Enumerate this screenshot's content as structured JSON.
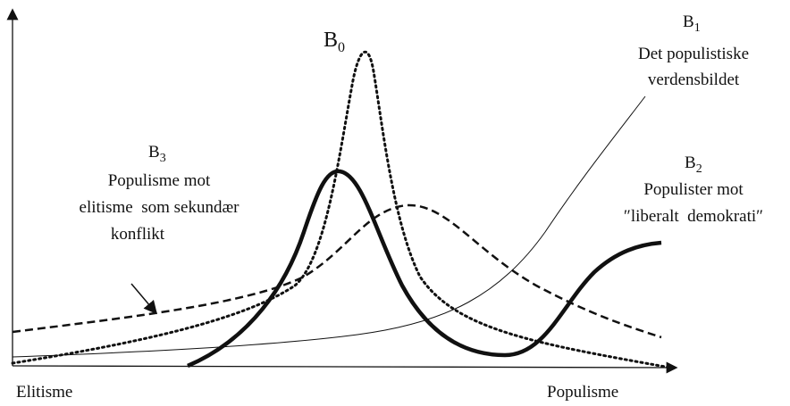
{
  "labels": {
    "b0": {
      "letter": "B",
      "sub": "0"
    },
    "b1": {
      "letter": "B",
      "sub": "1",
      "lines": [
        "Det populistiske",
        "verdensbildet"
      ]
    },
    "b2": {
      "letter": "B",
      "sub": "2",
      "lines": [
        "Populister mot",
        "″liberalt  demokrati″"
      ]
    },
    "b3": {
      "letter": "B",
      "sub": "3",
      "lines": [
        "Populisme mot",
        "elitisme  som sekundær",
        "konflikt"
      ]
    }
  },
  "axis": {
    "left": "Elitisme",
    "right": "Populisme"
  }
}
